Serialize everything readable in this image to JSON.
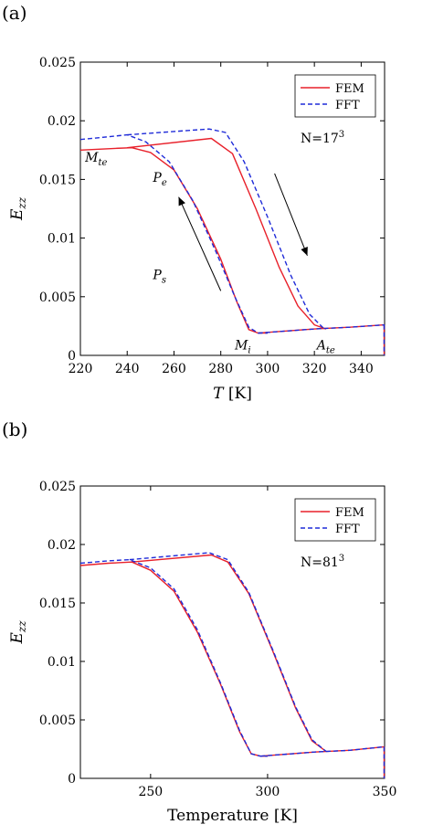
{
  "panels": [
    {
      "panel_label": "(a)",
      "chart_data": {
        "type": "line",
        "xlabel": "T [K]",
        "ylabel": "E_zz",
        "xlim": [
          220,
          350
        ],
        "ylim": [
          0,
          0.025
        ],
        "x_ticks": [
          220,
          240,
          260,
          280,
          300,
          320,
          340
        ],
        "y_ticks": [
          0,
          0.005,
          0.01,
          0.015,
          0.02,
          0.025
        ],
        "grid": false,
        "legend_position": "top-right",
        "legend_note": "N=17",
        "legend_note_exp": "3",
        "series": [
          {
            "name": "FEM",
            "color": "#e8202a",
            "dash": "solid",
            "cooling": [
              [
                220,
                0.0175
              ],
              [
                235,
                0.01765
              ],
              [
                242,
                0.0177
              ],
              [
                250,
                0.0173
              ],
              [
                260,
                0.0158
              ],
              [
                270,
                0.0125
              ],
              [
                280,
                0.0082
              ],
              [
                287,
                0.0045
              ],
              [
                292,
                0.0022
              ],
              [
                296,
                0.0019
              ],
              [
                300,
                0.0019
              ]
            ],
            "heating": [
              [
                296,
                0.0019
              ],
              [
                320,
                0.00225
              ],
              [
                335,
                0.0024
              ],
              [
                350,
                0.0026
              ]
            ],
            "heating_upper": [
              [
                240,
                0.0177
              ],
              [
                276,
                0.0185
              ],
              [
                285,
                0.0172
              ],
              [
                295,
                0.0125
              ],
              [
                305,
                0.0075
              ],
              [
                313,
                0.0042
              ],
              [
                320,
                0.0026
              ],
              [
                325,
                0.00225
              ]
            ],
            "vertical_end": [
              350,
              0.0026,
              0
            ]
          },
          {
            "name": "FFT",
            "color": "#1f2bd8",
            "dash": "dashed",
            "cooling": [
              [
                220,
                0.0184
              ],
              [
                230,
                0.0186
              ],
              [
                240,
                0.0188
              ],
              [
                248,
                0.0182
              ],
              [
                258,
                0.0165
              ],
              [
                268,
                0.0132
              ],
              [
                278,
                0.0088
              ],
              [
                286,
                0.005
              ],
              [
                292,
                0.0024
              ],
              [
                296,
                0.0019
              ],
              [
                300,
                0.0019
              ]
            ],
            "heating": [
              [
                296,
                0.0019
              ],
              [
                320,
                0.00225
              ],
              [
                335,
                0.0024
              ],
              [
                350,
                0.0026
              ]
            ],
            "heating_upper": [
              [
                240,
                0.0188
              ],
              [
                275,
                0.0193
              ],
              [
                282,
                0.019
              ],
              [
                290,
                0.0165
              ],
              [
                300,
                0.0118
              ],
              [
                310,
                0.0068
              ],
              [
                318,
                0.0035
              ],
              [
                324,
                0.0023
              ]
            ],
            "vertical_end": [
              350,
              0.0026,
              0
            ]
          }
        ],
        "annotations": [
          {
            "base": "M",
            "sub": "te",
            "x": 222,
            "y": 0.0165
          },
          {
            "base": "P",
            "sub": "e",
            "x": 251,
            "y": 0.0148
          },
          {
            "base": "P",
            "sub": "s",
            "x": 251,
            "y": 0.0065
          },
          {
            "base": "M",
            "sub": "i",
            "x": 286,
            "y": 0.0005
          },
          {
            "base": "A",
            "sub": "te",
            "x": 321,
            "y": 0.0005
          }
        ],
        "arrows": [
          {
            "from": [
              280,
              0.0055
            ],
            "to": [
              262,
              0.0135
            ]
          },
          {
            "from": [
              303,
              0.0155
            ],
            "to": [
              317,
              0.0085
            ]
          }
        ]
      }
    },
    {
      "panel_label": "(b)",
      "chart_data": {
        "type": "line",
        "xlabel": "Temperature [K]",
        "ylabel": "E_zz",
        "xlim": [
          220,
          350
        ],
        "ylim": [
          0,
          0.025
        ],
        "x_ticks": [
          250,
          300,
          350
        ],
        "y_ticks": [
          0,
          0.005,
          0.01,
          0.015,
          0.02,
          0.025
        ],
        "grid": false,
        "legend_position": "top-right",
        "legend_note": "N=81",
        "legend_note_exp": "3",
        "series": [
          {
            "name": "FEM",
            "color": "#e8202a",
            "dash": "solid",
            "cooling": [
              [
                220,
                0.0182
              ],
              [
                232,
                0.0184
              ],
              [
                242,
                0.0185
              ],
              [
                250,
                0.0178
              ],
              [
                260,
                0.016
              ],
              [
                270,
                0.0125
              ],
              [
                280,
                0.008
              ],
              [
                288,
                0.004
              ],
              [
                293,
                0.0021
              ],
              [
                297,
                0.0019
              ],
              [
                300,
                0.0019
              ]
            ],
            "heating": [
              [
                297,
                0.0019
              ],
              [
                320,
                0.00225
              ],
              [
                335,
                0.0024
              ],
              [
                350,
                0.0027
              ]
            ],
            "heating_upper": [
              [
                242,
                0.0185
              ],
              [
                276,
                0.0191
              ],
              [
                283,
                0.0185
              ],
              [
                292,
                0.0158
              ],
              [
                302,
                0.011
              ],
              [
                312,
                0.006
              ],
              [
                319,
                0.0032
              ],
              [
                325,
                0.0023
              ]
            ],
            "vertical_end": [
              350,
              0.0027,
              0
            ]
          },
          {
            "name": "FFT",
            "color": "#1f2bd8",
            "dash": "dashed",
            "cooling": [
              [
                220,
                0.0184
              ],
              [
                232,
                0.0186
              ],
              [
                241,
                0.0187
              ],
              [
                250,
                0.018
              ],
              [
                260,
                0.0162
              ],
              [
                270,
                0.0127
              ],
              [
                280,
                0.0081
              ],
              [
                288,
                0.0041
              ],
              [
                293,
                0.0021
              ],
              [
                297,
                0.0019
              ],
              [
                300,
                0.0019
              ]
            ],
            "heating": [
              [
                297,
                0.0019
              ],
              [
                320,
                0.00225
              ],
              [
                335,
                0.0024
              ],
              [
                350,
                0.0027
              ]
            ],
            "heating_upper": [
              [
                241,
                0.0187
              ],
              [
                275,
                0.0193
              ],
              [
                283,
                0.0187
              ],
              [
                292,
                0.0159
              ],
              [
                302,
                0.0111
              ],
              [
                312,
                0.0061
              ],
              [
                319,
                0.0033
              ],
              [
                325,
                0.0023
              ]
            ],
            "vertical_end": [
              350,
              0.0027,
              0
            ]
          }
        ],
        "annotations": [],
        "arrows": []
      }
    }
  ]
}
